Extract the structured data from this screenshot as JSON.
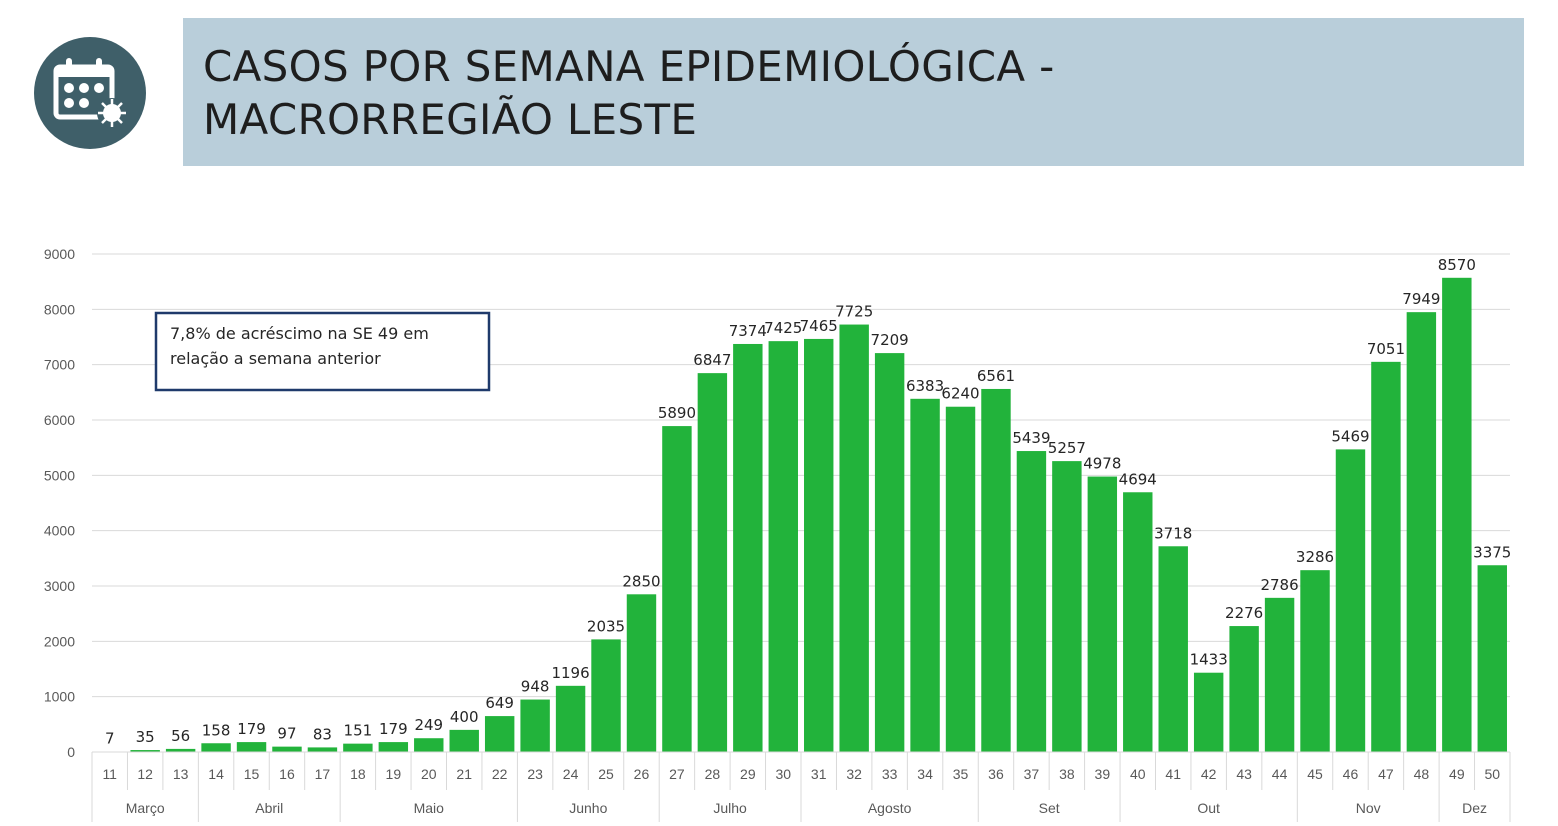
{
  "header": {
    "title_line1": "CASOS POR SEMANA EPIDEMIOLÓGICA -",
    "title_line2": "MACRORREGIÃO LESTE",
    "icon": "calendar-virus-icon"
  },
  "colors": {
    "bar": "#22b33b",
    "banner": "#b9ceda",
    "icon_bg": "#3f5f69",
    "annotation_border": "#1f3a6b"
  },
  "chart_data": {
    "type": "bar",
    "title": "CASOS POR SEMANA EPIDEMIOLÓGICA - MACRORREGIÃO LESTE",
    "xlabel": "",
    "ylabel": "",
    "ylim": [
      0,
      9000
    ],
    "yticks": [
      0,
      1000,
      2000,
      3000,
      4000,
      5000,
      6000,
      7000,
      8000,
      9000
    ],
    "grid": true,
    "categories": [
      "11",
      "12",
      "13",
      "14",
      "15",
      "16",
      "17",
      "18",
      "19",
      "20",
      "21",
      "22",
      "23",
      "24",
      "25",
      "26",
      "27",
      "28",
      "29",
      "30",
      "31",
      "32",
      "33",
      "34",
      "35",
      "36",
      "37",
      "38",
      "39",
      "40",
      "41",
      "42",
      "43",
      "44",
      "45",
      "46",
      "47",
      "48",
      "49",
      "50"
    ],
    "values": [
      7,
      35,
      56,
      158,
      179,
      97,
      83,
      151,
      179,
      249,
      400,
      649,
      948,
      1196,
      2035,
      2850,
      5890,
      6847,
      7374,
      7425,
      7465,
      7725,
      7209,
      6383,
      6240,
      6561,
      5439,
      5257,
      4978,
      4694,
      3718,
      1433,
      2276,
      2786,
      3286,
      5469,
      7051,
      7949,
      8570,
      3375
    ],
    "month_groups": [
      {
        "label": "Março",
        "count": 3
      },
      {
        "label": "Abril",
        "count": 4
      },
      {
        "label": "Maio",
        "count": 5
      },
      {
        "label": "Junho",
        "count": 4
      },
      {
        "label": "Julho",
        "count": 4
      },
      {
        "label": "Agosto",
        "count": 5
      },
      {
        "label": "Set",
        "count": 4
      },
      {
        "label": "Out",
        "count": 5
      },
      {
        "label": "Nov",
        "count": 4
      },
      {
        "label": "Dez",
        "count": 2
      }
    ],
    "annotation": {
      "line1": "7,8% de acréscimo na SE 49 em",
      "line2": "relação a semana anterior"
    }
  }
}
